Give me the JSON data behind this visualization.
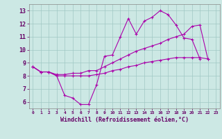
{
  "background_color": "#cce8e4",
  "grid_color": "#a0c8c4",
  "line_color": "#aa00aa",
  "marker": "+",
  "markersize": 3,
  "linewidth": 0.8,
  "xlabel": "Windchill (Refroidissement éolien,°C)",
  "xlabel_fontsize": 6.0,
  "ylabel_ticks": [
    6,
    7,
    8,
    9,
    10,
    11,
    12,
    13
  ],
  "xlim": [
    -0.5,
    23.5
  ],
  "ylim": [
    5.5,
    13.5
  ],
  "series1_x": [
    0,
    1,
    2,
    3,
    4,
    5,
    6,
    7,
    8,
    9,
    10,
    11,
    12,
    13,
    14,
    15,
    16,
    17,
    18,
    19,
    20,
    21
  ],
  "series1_y": [
    8.7,
    8.3,
    8.3,
    8.0,
    6.5,
    6.3,
    5.8,
    5.8,
    7.3,
    9.5,
    9.6,
    11.0,
    12.4,
    11.2,
    12.2,
    12.5,
    13.0,
    12.7,
    11.9,
    10.9,
    10.8,
    9.3
  ],
  "series2_x": [
    0,
    1,
    2,
    3,
    4,
    5,
    6,
    7,
    8,
    9,
    10,
    11,
    12,
    13,
    14,
    15,
    16,
    17,
    18,
    19,
    20,
    21,
    22
  ],
  "series2_y": [
    8.7,
    8.3,
    8.3,
    8.1,
    8.1,
    8.2,
    8.2,
    8.4,
    8.4,
    8.7,
    9.0,
    9.3,
    9.6,
    9.9,
    10.1,
    10.3,
    10.5,
    10.8,
    11.0,
    11.2,
    11.8,
    11.9,
    9.3
  ],
  "series3_x": [
    0,
    1,
    2,
    3,
    4,
    5,
    6,
    7,
    8,
    9,
    10,
    11,
    12,
    13,
    14,
    15,
    16,
    17,
    18,
    19,
    20,
    21,
    22
  ],
  "series3_y": [
    8.7,
    8.3,
    8.3,
    8.0,
    8.0,
    8.0,
    8.0,
    8.0,
    8.1,
    8.2,
    8.4,
    8.5,
    8.7,
    8.8,
    9.0,
    9.1,
    9.2,
    9.3,
    9.4,
    9.4,
    9.4,
    9.4,
    9.3
  ],
  "xtick_labels": [
    "0",
    "1",
    "2",
    "3",
    "4",
    "5",
    "6",
    "7",
    "8",
    "9",
    "10",
    "11",
    "12",
    "13",
    "14",
    "15",
    "16",
    "17",
    "18",
    "19",
    "20",
    "21",
    "22",
    "23"
  ],
  "xtick_fontsize": 4.5,
  "ytick_fontsize": 6.0
}
